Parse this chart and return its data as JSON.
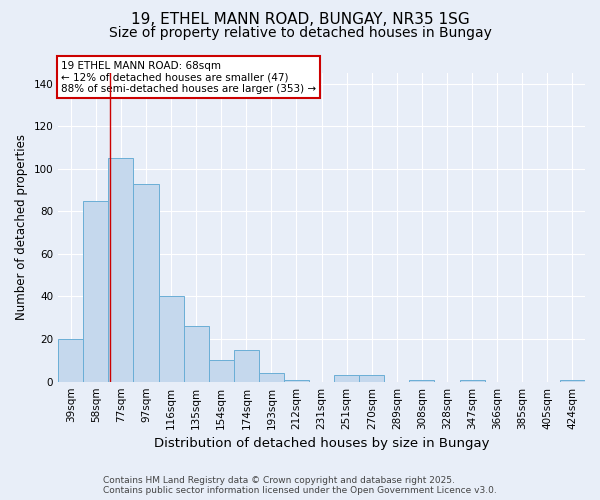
{
  "title": "19, ETHEL MANN ROAD, BUNGAY, NR35 1SG",
  "subtitle": "Size of property relative to detached houses in Bungay",
  "xlabel": "Distribution of detached houses by size in Bungay",
  "ylabel": "Number of detached properties",
  "categories": [
    "39sqm",
    "58sqm",
    "77sqm",
    "97sqm",
    "116sqm",
    "135sqm",
    "154sqm",
    "174sqm",
    "193sqm",
    "212sqm",
    "231sqm",
    "251sqm",
    "270sqm",
    "289sqm",
    "308sqm",
    "328sqm",
    "347sqm",
    "366sqm",
    "385sqm",
    "405sqm",
    "424sqm"
  ],
  "values": [
    20,
    85,
    105,
    93,
    40,
    26,
    10,
    15,
    4,
    1,
    0,
    3,
    3,
    0,
    1,
    0,
    1,
    0,
    0,
    0,
    1
  ],
  "bar_color": "#c5d8ed",
  "bar_edge_color": "#6aaed6",
  "red_line_index": 1.55,
  "annotation_text": "19 ETHEL MANN ROAD: 68sqm\n← 12% of detached houses are smaller (47)\n88% of semi-detached houses are larger (353) →",
  "annotation_box_color": "#ffffff",
  "annotation_box_edge": "#cc0000",
  "ylim": [
    0,
    145
  ],
  "yticks": [
    0,
    20,
    40,
    60,
    80,
    100,
    120,
    140
  ],
  "footer_line1": "Contains HM Land Registry data © Crown copyright and database right 2025.",
  "footer_line2": "Contains public sector information licensed under the Open Government Licence v3.0.",
  "bg_color": "#e8eef8",
  "grid_color": "#ffffff",
  "title_fontsize": 11,
  "subtitle_fontsize": 10,
  "tick_fontsize": 7.5,
  "ylabel_fontsize": 8.5,
  "xlabel_fontsize": 9.5,
  "footer_fontsize": 6.5
}
